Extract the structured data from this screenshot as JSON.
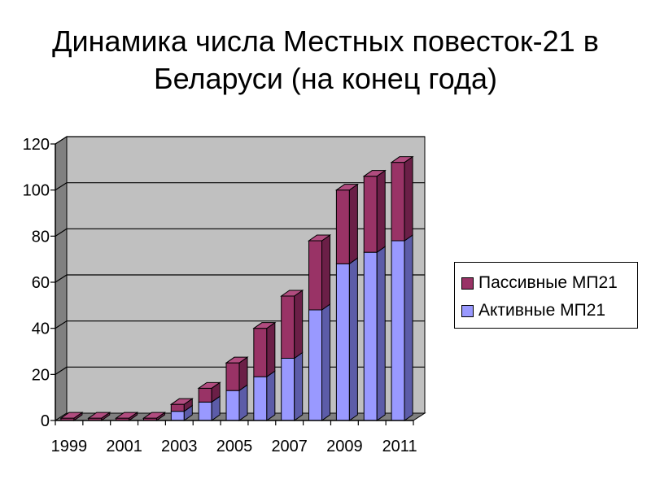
{
  "title": {
    "line1": "Динамика числа Местных повесток-21 в",
    "line2": "Беларуси (на конец года)"
  },
  "colors": {
    "active_front": "#9999ff",
    "active_side": "#5c5ca8",
    "active_top": "#b8b8ff",
    "passive_front": "#993366",
    "passive_side": "#6b1f47",
    "passive_top": "#b14c7f",
    "wall": "#c0c0c0",
    "floor": "#808080"
  },
  "chart_data": {
    "type": "bar",
    "stacked": true,
    "three_d": true,
    "categories": [
      "1999",
      "2000",
      "2001",
      "2002",
      "2003",
      "2004",
      "2005",
      "2006",
      "2007",
      "2008",
      "2009",
      "2010",
      "2011"
    ],
    "x_tick_labels": [
      "1999",
      "2001",
      "2003",
      "2005",
      "2007",
      "2009",
      "2011"
    ],
    "series": [
      {
        "name": "Активные МП21",
        "values": [
          0,
          0,
          0,
          0,
          4,
          8,
          13,
          19,
          27,
          48,
          68,
          73,
          78
        ]
      },
      {
        "name": "Пассивные МП21",
        "values": [
          1,
          1,
          1,
          1,
          3,
          6,
          12,
          21,
          27,
          30,
          32,
          33,
          34
        ]
      }
    ],
    "ylim": [
      0,
      120
    ],
    "y_ticks": [
      "0",
      "20",
      "40",
      "60",
      "80",
      "100",
      "120"
    ],
    "grid": true,
    "legend": "right",
    "legend_order": [
      "Пассивные МП21",
      "Активные МП21"
    ]
  }
}
